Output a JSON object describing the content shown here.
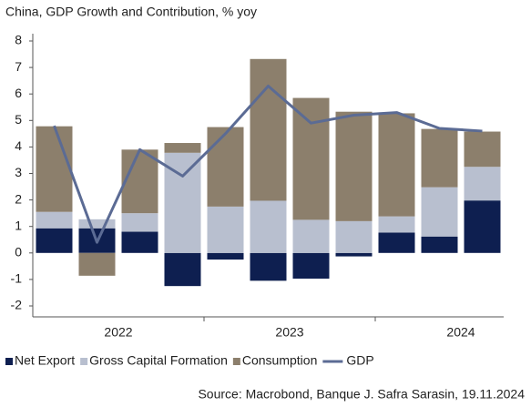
{
  "chart_data": {
    "type": "stacked_bar_line",
    "title": "China, GDP Growth and Contribution, % yoy",
    "categories": [
      null,
      null,
      null,
      null,
      null,
      null,
      null,
      null,
      null,
      null,
      null
    ],
    "x_groups": [
      "2022",
      "2023",
      "2024"
    ],
    "series": [
      {
        "name": "Net Export",
        "color": "#0e1f50",
        "values": [
          0.93,
          0.93,
          0.8,
          -1.25,
          -0.25,
          -1.05,
          -0.97,
          -0.13,
          0.77,
          0.62,
          1.98
        ]
      },
      {
        "name": "Gross Capital Formation",
        "color": "#b8bfcf",
        "values": [
          0.62,
          0.34,
          0.7,
          3.78,
          1.75,
          1.97,
          1.25,
          1.2,
          0.61,
          1.86,
          1.27
        ]
      },
      {
        "name": "Consumption",
        "color": "#8c7f6c",
        "values": [
          3.23,
          -0.86,
          2.4,
          0.37,
          3.0,
          5.35,
          4.6,
          4.13,
          3.89,
          2.2,
          1.33
        ]
      },
      {
        "name": "GDP",
        "color": "#5b6b94",
        "kind": "line",
        "values": [
          4.8,
          0.4,
          3.9,
          2.9,
          4.5,
          6.3,
          4.9,
          5.2,
          5.3,
          4.7,
          4.6
        ]
      }
    ],
    "ylim": [
      -2,
      8
    ],
    "yticks": [
      -2,
      -1,
      0,
      1,
      2,
      3,
      4,
      5,
      6,
      7,
      8
    ],
    "source": "Source: Macrobond, Banque J. Safra Sarasin, 19.11.2024"
  }
}
